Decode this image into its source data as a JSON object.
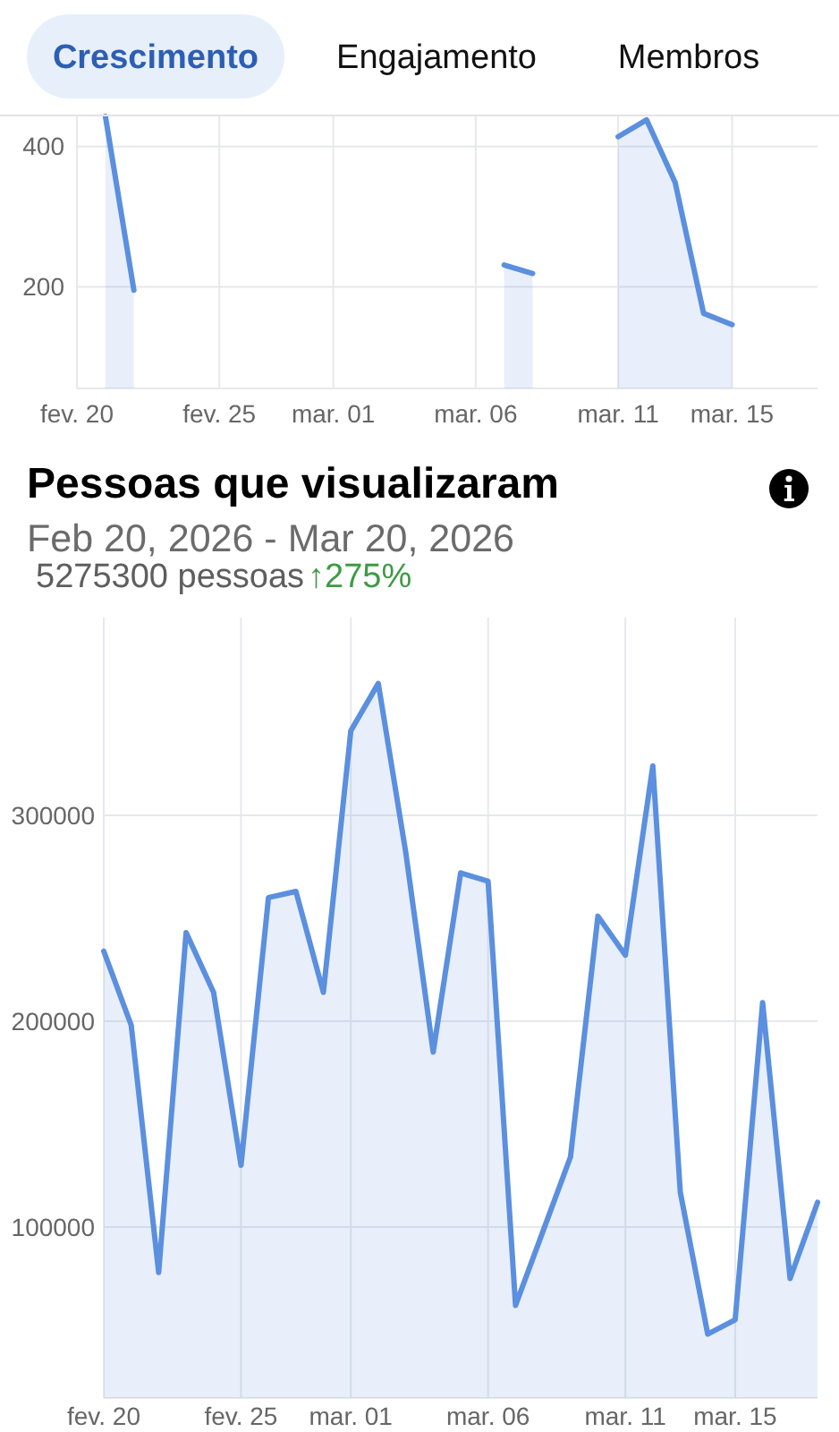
{
  "chart_data": [
    {
      "type": "area",
      "annotations": [
        "Crescimento",
        "Engajamento",
        "Membros"
      ],
      "x": [
        "2026-02-21",
        "2026-02-22",
        "2026-02-23",
        "2026-02-24",
        "2026-02-25",
        "2026-02-26",
        "2026-02-27",
        "2026-02-28",
        "2026-03-01",
        "2026-03-02",
        "2026-03-03",
        "2026-03-04",
        "2026-03-05",
        "2026-03-06",
        "2026-03-07",
        "2026-03-08",
        "2026-03-09",
        "2026-03-10",
        "2026-03-11",
        "2026-03-12",
        "2026-03-13",
        "2026-03-14",
        "2026-03-15"
      ],
      "values": [
        443,
        195,
        null,
        null,
        null,
        null,
        null,
        null,
        null,
        null,
        null,
        null,
        null,
        null,
        231,
        219,
        null,
        null,
        414,
        438,
        349,
        162,
        146
      ],
      "color": "#5b8fdf",
      "xlim": [
        "2026-02-20",
        "2026-03-18"
      ],
      "xticks": [
        {
          "value": "2026-02-20",
          "label": "fev. 20"
        },
        {
          "value": "2026-02-25",
          "label": "fev. 25"
        },
        {
          "value": "2026-03-01",
          "label": "mar. 01"
        },
        {
          "value": "2026-03-06",
          "label": "mar. 06"
        },
        {
          "value": "2026-03-11",
          "label": "mar. 11"
        },
        {
          "value": "2026-03-15",
          "label": "mar. 15"
        }
      ],
      "ylim": [
        55,
        443
      ],
      "yticks": [
        200,
        400
      ],
      "grid": true
    },
    {
      "type": "area",
      "title": "Pessoas que visualizaram",
      "subtitle": "Feb 20, 2026 - Mar 20, 2026",
      "annotations": [
        "5275300 pessoas",
        "↑275%"
      ],
      "x": [
        "2026-02-20",
        "2026-02-21",
        "2026-02-22",
        "2026-02-23",
        "2026-02-24",
        "2026-02-25",
        "2026-02-26",
        "2026-02-27",
        "2026-02-28",
        "2026-03-01",
        "2026-03-02",
        "2026-03-03",
        "2026-03-04",
        "2026-03-05",
        "2026-03-06",
        "2026-03-07",
        "2026-03-08",
        "2026-03-09",
        "2026-03-10",
        "2026-03-11",
        "2026-03-12",
        "2026-03-13",
        "2026-03-14",
        "2026-03-15",
        "2026-03-16",
        "2026-03-17",
        "2026-03-18"
      ],
      "values": [
        234000,
        198000,
        78000,
        243000,
        214000,
        130000,
        260000,
        263000,
        214000,
        341000,
        364000,
        282000,
        185000,
        272000,
        268000,
        62000,
        98000,
        134000,
        251000,
        232000,
        324000,
        117000,
        48000,
        55000,
        209000,
        75000,
        112000
      ],
      "color": "#5b8fdf",
      "xlim": [
        "2026-02-20",
        "2026-03-18"
      ],
      "xticks": [
        {
          "value": "2026-02-20",
          "label": "fev. 20"
        },
        {
          "value": "2026-02-25",
          "label": "fev. 25"
        },
        {
          "value": "2026-03-01",
          "label": "mar. 01"
        },
        {
          "value": "2026-03-06",
          "label": "mar. 06"
        },
        {
          "value": "2026-03-11",
          "label": "mar. 11"
        },
        {
          "value": "2026-03-15",
          "label": "mar. 15"
        }
      ],
      "ylim": [
        17000,
        396000
      ],
      "yticks": [
        100000,
        200000,
        300000
      ],
      "grid": true
    }
  ]
}
